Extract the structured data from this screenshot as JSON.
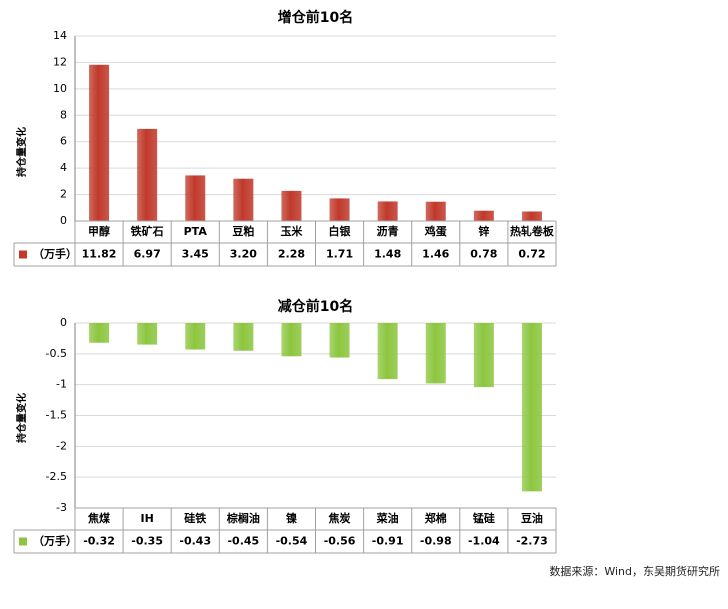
{
  "colors": {
    "top_bar": "#c0392b",
    "bottom_bar": "#8cc63f",
    "grid": "#d9d9d9",
    "axis": "#808080",
    "table_border": "#a0a0a0"
  },
  "source_note": "数据来源：Wind，东吴期货研究所",
  "chart_data": [
    {
      "type": "bar",
      "title": "增仓前10名",
      "xlabel": "",
      "ylabel": "持仓量变化",
      "ylim": [
        0,
        14
      ],
      "yticks": [
        0,
        2,
        4,
        6,
        8,
        10,
        12,
        14
      ],
      "grid": true,
      "categories": [
        "甲醇",
        "铁矿石",
        "PTA",
        "豆粕",
        "玉米",
        "白银",
        "沥青",
        "鸡蛋",
        "锌",
        "热轧卷板"
      ],
      "series": [
        {
          "name": "（万手）",
          "values": [
            11.82,
            6.97,
            3.45,
            3.2,
            2.28,
            1.71,
            1.48,
            1.46,
            0.78,
            0.72
          ],
          "value_labels": [
            "11.82",
            "6.97",
            "3.45",
            "3.20",
            "2.28",
            "1.71",
            "1.48",
            "1.46",
            "0.78",
            "0.72"
          ]
        }
      ]
    },
    {
      "type": "bar",
      "title": "减仓前10名",
      "xlabel": "",
      "ylabel": "持仓量变化",
      "ylim": [
        -3,
        0
      ],
      "yticks": [
        0,
        -0.5,
        -1,
        -1.5,
        -2,
        -2.5,
        -3
      ],
      "grid": true,
      "categories": [
        "焦煤",
        "IH",
        "硅铁",
        "棕榈油",
        "镍",
        "焦炭",
        "菜油",
        "郑棉",
        "锰硅",
        "豆油"
      ],
      "series": [
        {
          "name": "（万手）",
          "values": [
            -0.32,
            -0.35,
            -0.43,
            -0.45,
            -0.54,
            -0.56,
            -0.91,
            -0.98,
            -1.04,
            -2.73
          ],
          "value_labels": [
            "-0.32",
            "-0.35",
            "-0.43",
            "-0.45",
            "-0.54",
            "-0.56",
            "-0.91",
            "-0.98",
            "-1.04",
            "-2.73"
          ]
        }
      ]
    }
  ]
}
